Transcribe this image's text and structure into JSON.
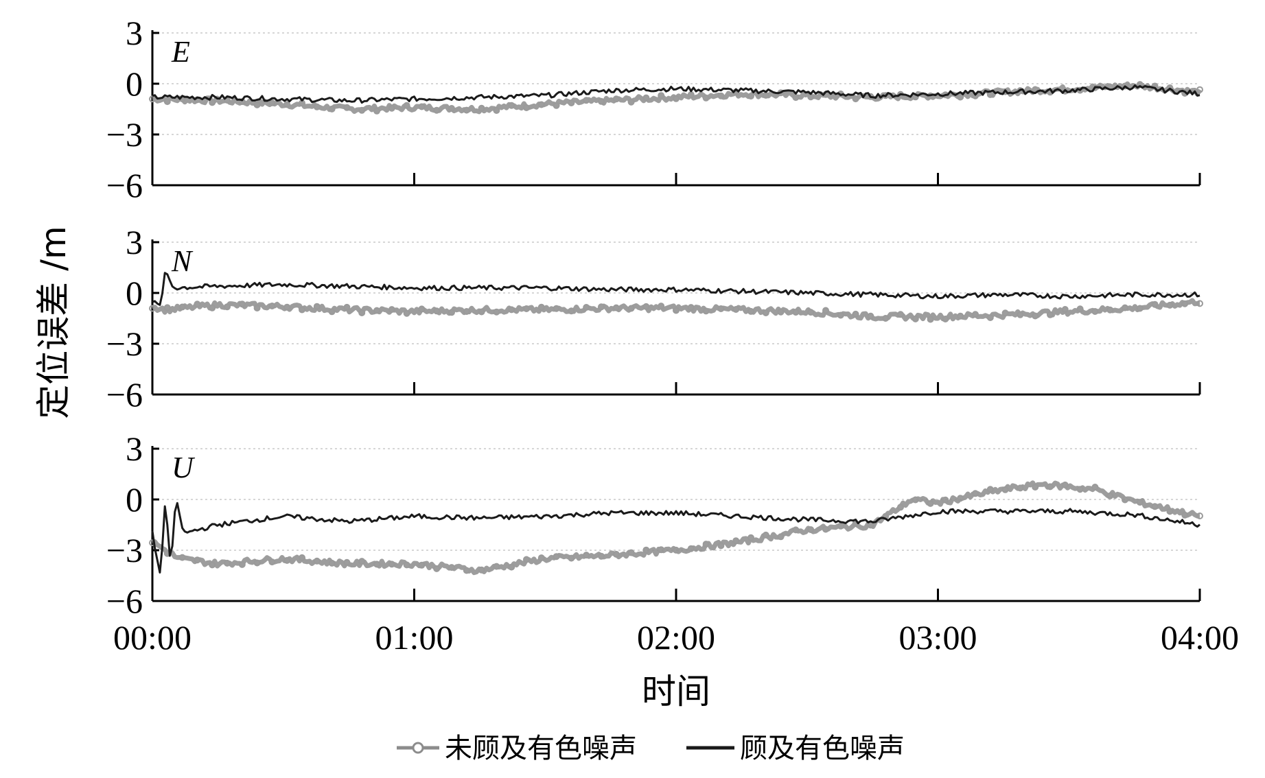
{
  "chart_data": {
    "type": "line",
    "ylabel": "定位误差 /m",
    "xlabel": "时间",
    "x_ticks": [
      "00:00",
      "01:00",
      "02:00",
      "03:00",
      "04:00"
    ],
    "xlim_hours": [
      0,
      4
    ],
    "ylim": [
      -6,
      3
    ],
    "y_ticks": [
      3,
      0,
      -3,
      -6
    ],
    "y_tick_labels": [
      "3",
      "0",
      "−3",
      "−6"
    ],
    "grid": "dotted horizontal at 3, 0 and -3",
    "legend": {
      "placement": "bottom-center",
      "entries": [
        {
          "label": "未顾及有色噪声",
          "color": "#8c8c8c",
          "marker": "circle"
        },
        {
          "label": "顾及有色噪声",
          "color": "#1a1a1a",
          "marker": "none"
        }
      ]
    },
    "panels": [
      {
        "name": "E",
        "series": [
          {
            "legend_index": 0,
            "x": [
              0,
              0.25,
              0.5,
              0.75,
              1.0,
              1.25,
              1.5,
              1.75,
              2.0,
              2.25,
              2.5,
              2.75,
              3.0,
              3.25,
              3.5,
              3.75,
              4.0
            ],
            "values": [
              -0.9,
              -1.0,
              -1.2,
              -1.5,
              -1.4,
              -1.5,
              -1.2,
              -1.0,
              -0.8,
              -0.6,
              -0.7,
              -0.8,
              -0.7,
              -0.5,
              -0.3,
              -0.1,
              -0.5
            ]
          },
          {
            "legend_index": 1,
            "x": [
              0,
              0.25,
              0.5,
              0.75,
              1.0,
              1.25,
              1.5,
              1.75,
              2.0,
              2.25,
              2.5,
              2.75,
              3.0,
              3.25,
              3.5,
              3.75,
              4.0
            ],
            "values": [
              -0.8,
              -0.8,
              -0.9,
              -1.0,
              -0.9,
              -0.8,
              -0.7,
              -0.4,
              -0.3,
              -0.4,
              -0.5,
              -0.7,
              -0.6,
              -0.5,
              -0.4,
              -0.2,
              -0.6
            ]
          }
        ]
      },
      {
        "name": "N",
        "series": [
          {
            "legend_index": 0,
            "x": [
              0,
              0.05,
              0.25,
              0.5,
              0.75,
              1.0,
              1.25,
              1.5,
              1.75,
              2.0,
              2.25,
              2.5,
              2.75,
              3.0,
              3.25,
              3.5,
              3.75,
              4.0
            ],
            "values": [
              -0.8,
              -1.0,
              -0.7,
              -0.8,
              -1.0,
              -1.1,
              -1.0,
              -1.0,
              -0.9,
              -0.9,
              -1.0,
              -1.1,
              -1.4,
              -1.4,
              -1.3,
              -1.1,
              -0.9,
              -0.5
            ]
          },
          {
            "legend_index": 1,
            "x": [
              0,
              0.03,
              0.05,
              0.08,
              0.25,
              0.5,
              0.75,
              1.0,
              1.25,
              1.5,
              1.75,
              2.0,
              2.25,
              2.5,
              2.75,
              3.0,
              3.25,
              3.5,
              3.75,
              4.0
            ],
            "values": [
              -0.5,
              -0.8,
              1.3,
              0.3,
              0.4,
              0.5,
              0.4,
              0.3,
              0.3,
              0.3,
              0.2,
              0.2,
              0.1,
              0.0,
              -0.1,
              -0.2,
              -0.1,
              -0.2,
              -0.1,
              -0.1
            ]
          }
        ]
      },
      {
        "name": "U",
        "series": [
          {
            "legend_index": 0,
            "x": [
              0,
              0.1,
              0.25,
              0.5,
              0.75,
              1.0,
              1.25,
              1.5,
              1.75,
              2.0,
              2.25,
              2.5,
              2.75,
              2.9,
              3.0,
              3.25,
              3.4,
              3.6,
              3.75,
              4.0
            ],
            "values": [
              -2.5,
              -3.5,
              -3.8,
              -3.5,
              -3.8,
              -3.8,
              -4.2,
              -3.5,
              -3.3,
              -3.0,
              -2.5,
              -1.8,
              -1.5,
              0.0,
              -0.2,
              0.6,
              0.9,
              0.6,
              -0.1,
              -1.0
            ]
          },
          {
            "legend_index": 1,
            "x": [
              0,
              0.03,
              0.05,
              0.07,
              0.09,
              0.12,
              0.25,
              0.5,
              0.75,
              1.0,
              1.25,
              1.5,
              1.75,
              2.0,
              2.25,
              2.5,
              2.75,
              3.0,
              3.25,
              3.5,
              3.75,
              4.0
            ],
            "values": [
              -2.0,
              -4.5,
              0.0,
              -4.0,
              0.0,
              -2.0,
              -1.5,
              -1.0,
              -1.3,
              -1.0,
              -1.1,
              -1.0,
              -0.8,
              -0.8,
              -1.0,
              -1.2,
              -1.3,
              -0.7,
              -0.7,
              -0.7,
              -0.9,
              -1.5
            ]
          }
        ]
      }
    ]
  }
}
